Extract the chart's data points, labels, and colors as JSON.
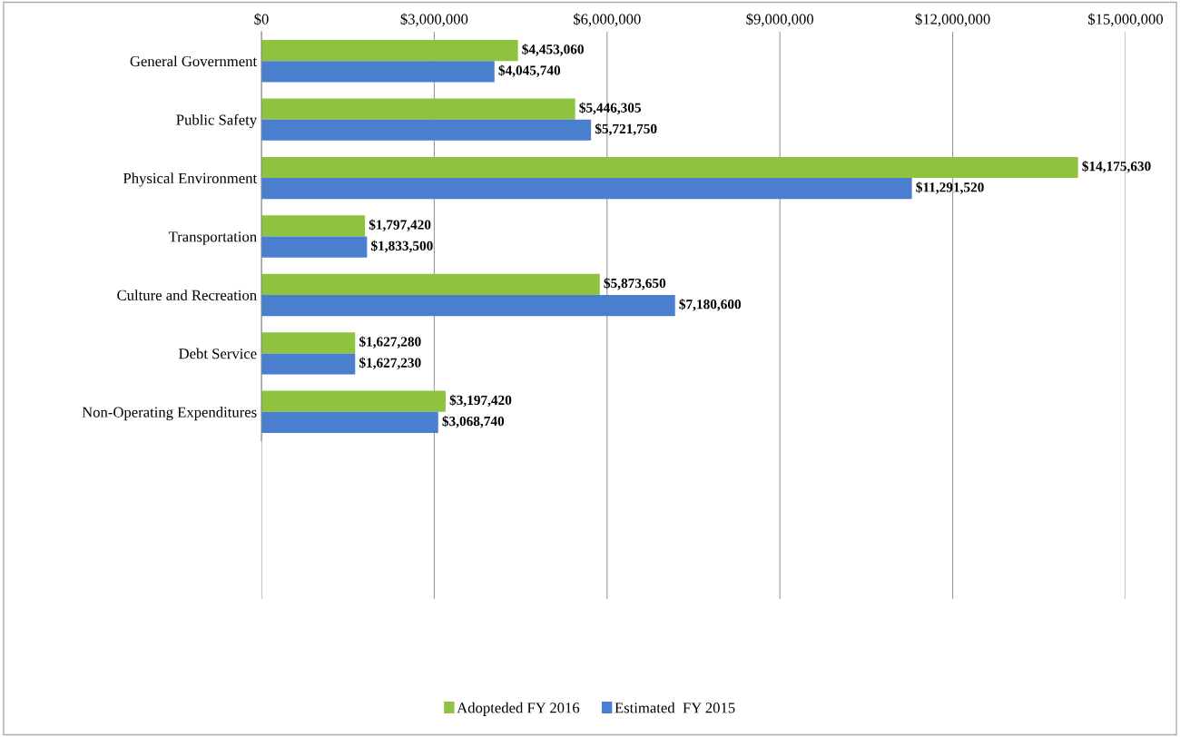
{
  "chart_data": {
    "type": "bar",
    "orientation": "horizontal",
    "categories": [
      "General Government",
      "Public Safety",
      "Physical Environment",
      "Transportation",
      "Culture and Recreation",
      "Debt Service",
      "Non-Operating Expenditures"
    ],
    "series": [
      {
        "name": "Adopteded FY 2016",
        "color": "#8fc33f",
        "values": [
          4453060,
          5446305,
          14175630,
          1797420,
          5873650,
          1627280,
          3197420
        ],
        "value_labels": [
          "$4,453,060",
          "$5,446,305",
          "$14,175,630",
          "$1,797,420",
          "$5,873,650",
          "$1,627,280",
          "$3,197,420"
        ]
      },
      {
        "name": "Estimated  FY 2015",
        "color": "#4a7fd0",
        "values": [
          4045740,
          5721750,
          11291520,
          1833500,
          7180600,
          1627230,
          3068740
        ],
        "value_labels": [
          "$4,045,740",
          "$5,721,750",
          "$11,291,520",
          "$1,833,500",
          "$7,180,600",
          "$1,627,230",
          "$3,068,740"
        ]
      }
    ],
    "xlim": [
      0,
      15000000
    ],
    "xticks": [
      {
        "value": 0,
        "label": "$0"
      },
      {
        "value": 3000000,
        "label": "$3,000,000"
      },
      {
        "value": 6000000,
        "label": "$6,000,000"
      },
      {
        "value": 9000000,
        "label": "$9,000,000"
      },
      {
        "value": 12000000,
        "label": "$12,000,000"
      },
      {
        "value": 15000000,
        "label": "$15,000,000"
      }
    ],
    "grid": "x",
    "legend": "bottom"
  }
}
